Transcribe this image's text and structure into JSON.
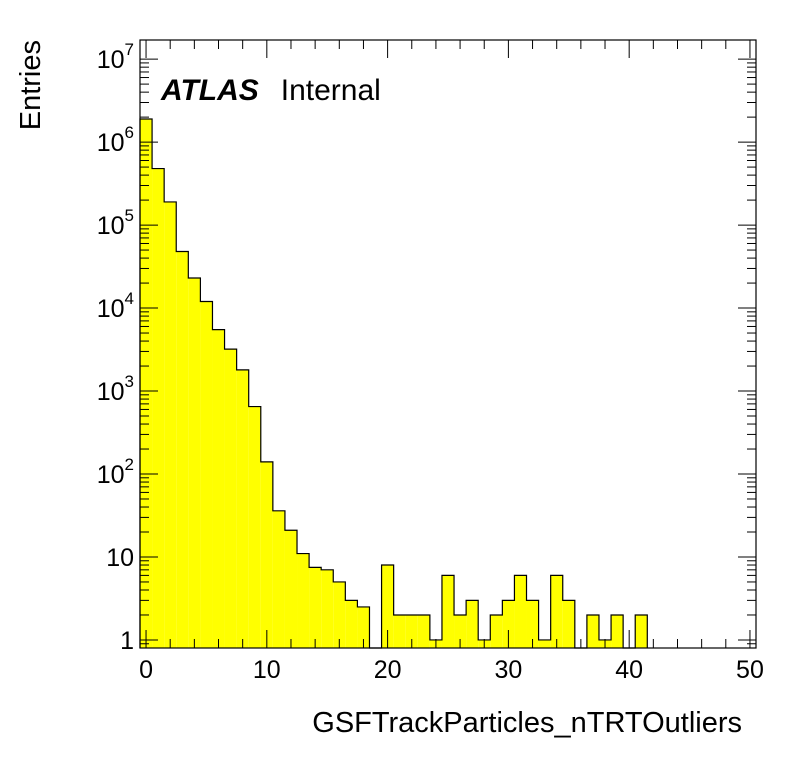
{
  "chart_data": {
    "type": "histogram",
    "xlabel": "GSFTrackParticles_nTRTOutliers",
    "ylabel": "Entries",
    "xlim": [
      -0.5,
      50.5
    ],
    "ylim": [
      0.8,
      17000000
    ],
    "yscale": "log",
    "grid": false,
    "legend": "none",
    "bin_width": 1,
    "bin_start": -0.5,
    "fill_color": "#ffff00",
    "line_color": "#000000",
    "x_ticks": [
      "0",
      "10",
      "20",
      "30",
      "40",
      "50"
    ],
    "x_tick_values": [
      0,
      10,
      20,
      30,
      40,
      50
    ],
    "y_ticks": [
      {
        "value": 1,
        "base": "1",
        "exp": ""
      },
      {
        "value": 10,
        "base": "10",
        "exp": ""
      },
      {
        "value": 100,
        "base": "10",
        "exp": "2"
      },
      {
        "value": 1000,
        "base": "10",
        "exp": "3"
      },
      {
        "value": 10000,
        "base": "10",
        "exp": "4"
      },
      {
        "value": 100000,
        "base": "10",
        "exp": "5"
      },
      {
        "value": 1000000,
        "base": "10",
        "exp": "6"
      },
      {
        "value": 10000000,
        "base": "10",
        "exp": "7"
      }
    ],
    "values": [
      1900000,
      480000,
      190000,
      48000,
      23000,
      12000,
      5500,
      3200,
      1800,
      650,
      140,
      36,
      21,
      11,
      7.5,
      7,
      5,
      3,
      2.5,
      0,
      8,
      2,
      2,
      2,
      1,
      6,
      2,
      3,
      1,
      2,
      3,
      6,
      3,
      1,
      6,
      3,
      0,
      2,
      1,
      2,
      0,
      2
    ]
  },
  "annotation": {
    "experiment": "ATLAS",
    "status": "Internal"
  }
}
